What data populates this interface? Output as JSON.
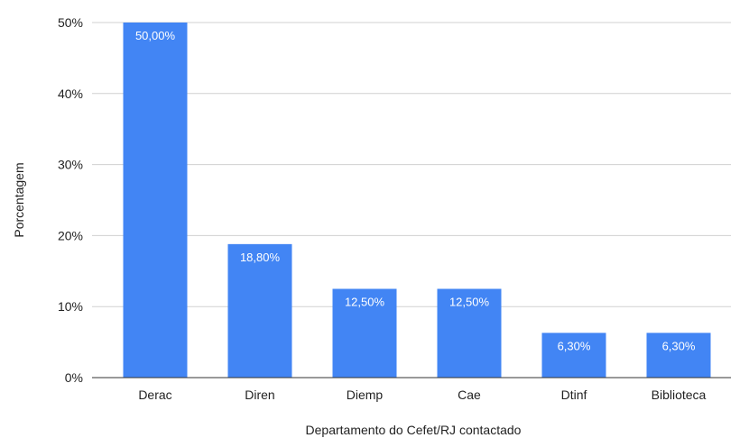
{
  "chart_data": {
    "type": "bar",
    "categories": [
      "Derac",
      "Diren",
      "Diemp",
      "Cae",
      "Dtinf",
      "Biblioteca"
    ],
    "values": [
      50.0,
      18.8,
      12.5,
      12.5,
      6.3,
      6.3
    ],
    "data_labels": [
      "50,00%",
      "18,80%",
      "12,50%",
      "12,50%",
      "6,30%",
      "6,30%"
    ],
    "title": "",
    "xlabel": "Departamento do Cefet/RJ contactado",
    "ylabel": "Porcentagem",
    "ylim": [
      0,
      50
    ],
    "yticks": [
      {
        "value": 0,
        "label": "0%"
      },
      {
        "value": 10,
        "label": "10%"
      },
      {
        "value": 20,
        "label": "20%"
      },
      {
        "value": 30,
        "label": "30%"
      },
      {
        "value": 40,
        "label": "40%"
      },
      {
        "value": 50,
        "label": "50%"
      }
    ],
    "grid": true,
    "legend": "none",
    "bar_color": "#4285f4"
  }
}
